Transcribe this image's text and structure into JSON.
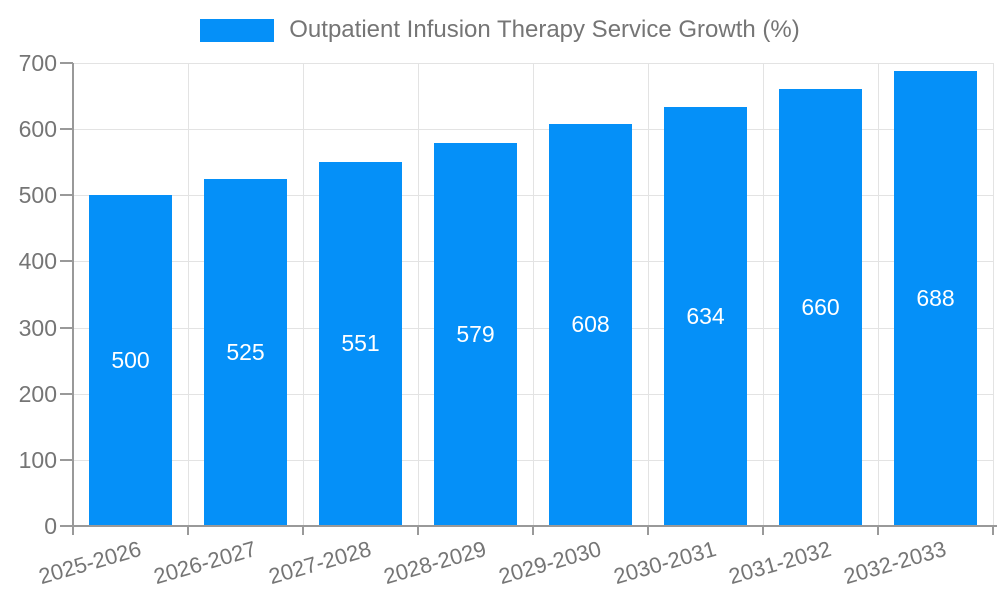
{
  "chart_data": {
    "type": "bar",
    "title": "Outpatient Infusion Therapy Service Growth (%)",
    "legend": {
      "label": "Outpatient Infusion Therapy Service Growth (%)",
      "position": "top-center"
    },
    "categories": [
      "2025-2026",
      "2026-2027",
      "2027-2028",
      "2028-2029",
      "2029-2030",
      "2030-2031",
      "2031-2032",
      "2032-2033"
    ],
    "values": [
      500,
      525,
      551,
      579,
      608,
      634,
      660,
      688
    ],
    "xlabel": "",
    "ylabel": "",
    "ylim": [
      0,
      700
    ],
    "ytick_step": 100,
    "yticks": [
      0,
      100,
      200,
      300,
      400,
      500,
      600,
      700
    ],
    "grid": true,
    "bar_labels_inside": true,
    "x_label_rotation_deg": -16,
    "colors": {
      "bar": "#0590f8",
      "bar_value_label": "#ffffff",
      "grid": "#e3e3e3",
      "axis": "#999999",
      "text": "#757575",
      "background": "#ffffff"
    }
  }
}
